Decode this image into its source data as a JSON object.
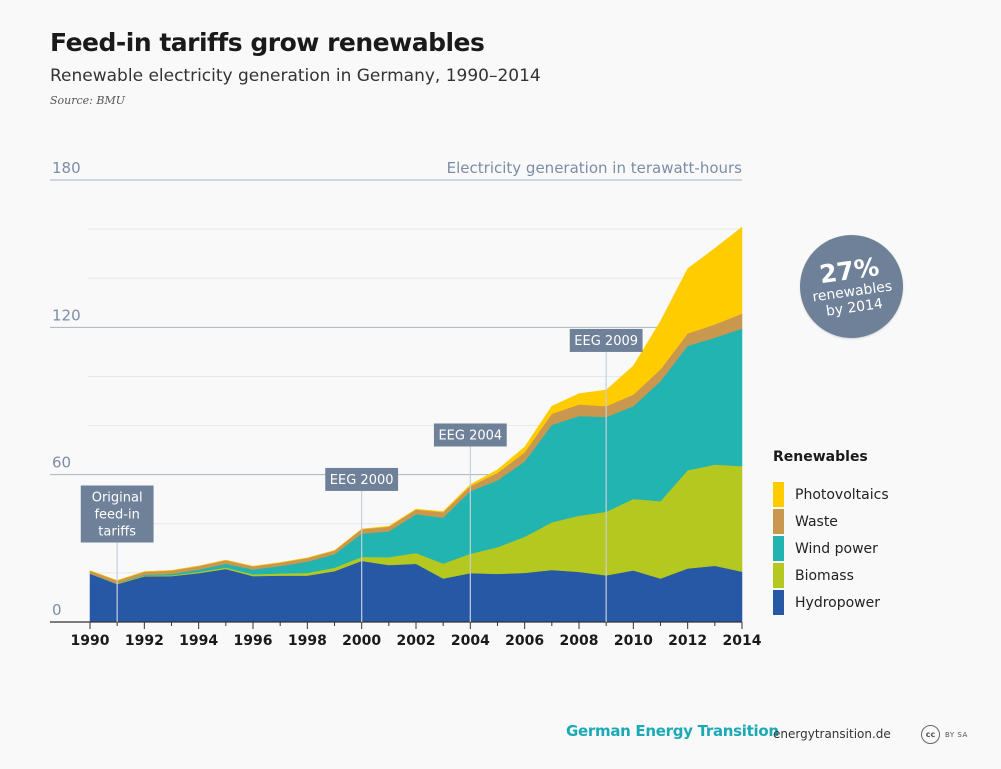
{
  "header": {
    "title": "Feed-in tariffs grow renewables",
    "subtitle": "Renewable electricity generation in Germany, 1990–2014",
    "source": "Source: BMU"
  },
  "badge": {
    "value": "27%",
    "line1": "renewables",
    "line2": "by 2014",
    "color": "#6f8199"
  },
  "legend": {
    "title": "Renewables",
    "items": [
      {
        "label": "Photovoltaics",
        "color": "#ffcc00"
      },
      {
        "label": "Waste",
        "color": "#c9974e"
      },
      {
        "label": "Wind power",
        "color": "#22b4b0"
      },
      {
        "label": "Biomass",
        "color": "#b4c820"
      },
      {
        "label": "Hydropower",
        "color": "#2758a6"
      }
    ]
  },
  "footer": {
    "brand": "German Energy Transition",
    "url": "energytransition.de",
    "license_icon": "cc-icon",
    "license_text": "BY SA"
  },
  "chart_data": {
    "type": "area",
    "stacked": true,
    "ylabel": "Electricity generation in terawatt-hours",
    "ylim": [
      0,
      180
    ],
    "yticks": [
      0,
      60,
      120,
      180
    ],
    "xlim": [
      1990,
      2014
    ],
    "xticks": [
      1990,
      1992,
      1994,
      1996,
      1998,
      2000,
      2002,
      2004,
      2006,
      2008,
      2010,
      2012,
      2014
    ],
    "x": [
      1990,
      1991,
      1992,
      1993,
      1994,
      1995,
      1996,
      1997,
      1998,
      1999,
      2000,
      2001,
      2002,
      2003,
      2004,
      2005,
      2006,
      2007,
      2008,
      2009,
      2010,
      2011,
      2012,
      2013,
      2014
    ],
    "series": [
      {
        "name": "Hydropower",
        "color": "#2758a6",
        "values": [
          19.7,
          15.4,
          18.6,
          18.7,
          19.9,
          21.6,
          18.7,
          18.9,
          18.9,
          20.7,
          24.9,
          23.2,
          23.7,
          17.7,
          19.9,
          19.6,
          20.0,
          21.2,
          20.4,
          19.0,
          21.0,
          17.7,
          21.8,
          22.9,
          20.5
        ]
      },
      {
        "name": "Biomass",
        "color": "#b4c820",
        "values": [
          0.0,
          0.2,
          0.3,
          0.3,
          0.5,
          0.6,
          0.7,
          0.9,
          1.1,
          1.4,
          1.6,
          3.2,
          4.4,
          6.1,
          7.9,
          10.9,
          14.7,
          19.4,
          22.9,
          25.9,
          29.1,
          31.5,
          40.0,
          41.2,
          43.0
        ]
      },
      {
        "name": "Wind power",
        "color": "#22b4b0",
        "values": [
          0.0,
          0.1,
          0.3,
          0.6,
          0.9,
          1.5,
          2.0,
          3.0,
          4.6,
          5.5,
          9.5,
          10.5,
          15.8,
          18.7,
          25.5,
          27.2,
          30.7,
          39.7,
          40.6,
          38.6,
          37.8,
          48.9,
          50.7,
          51.7,
          56.0
        ]
      },
      {
        "name": "Waste",
        "color": "#c9974e",
        "values": [
          1.2,
          1.2,
          1.3,
          1.4,
          1.5,
          1.5,
          1.3,
          1.4,
          1.5,
          1.5,
          1.8,
          1.9,
          1.9,
          2.2,
          2.1,
          3.0,
          3.7,
          4.5,
          4.7,
          4.4,
          4.7,
          4.8,
          5.0,
          5.4,
          6.1
        ]
      },
      {
        "name": "Photovoltaics",
        "color": "#ffcc00",
        "values": [
          0.0,
          0.0,
          0.0,
          0.0,
          0.0,
          0.0,
          0.0,
          0.0,
          0.0,
          0.0,
          0.1,
          0.2,
          0.2,
          0.3,
          0.6,
          1.3,
          2.2,
          3.1,
          4.4,
          6.6,
          11.7,
          19.6,
          26.4,
          31.0,
          35.2
        ]
      }
    ],
    "annotations": [
      {
        "year": 1991,
        "label_lines": [
          "Original",
          "feed-in",
          "tariffs"
        ]
      },
      {
        "year": 2000,
        "label_lines": [
          "EEG 2000"
        ]
      },
      {
        "year": 2004,
        "label_lines": [
          "EEG 2004"
        ]
      },
      {
        "year": 2009,
        "label_lines": [
          "EEG 2009"
        ]
      }
    ],
    "grid": true,
    "legend_position": "right"
  }
}
